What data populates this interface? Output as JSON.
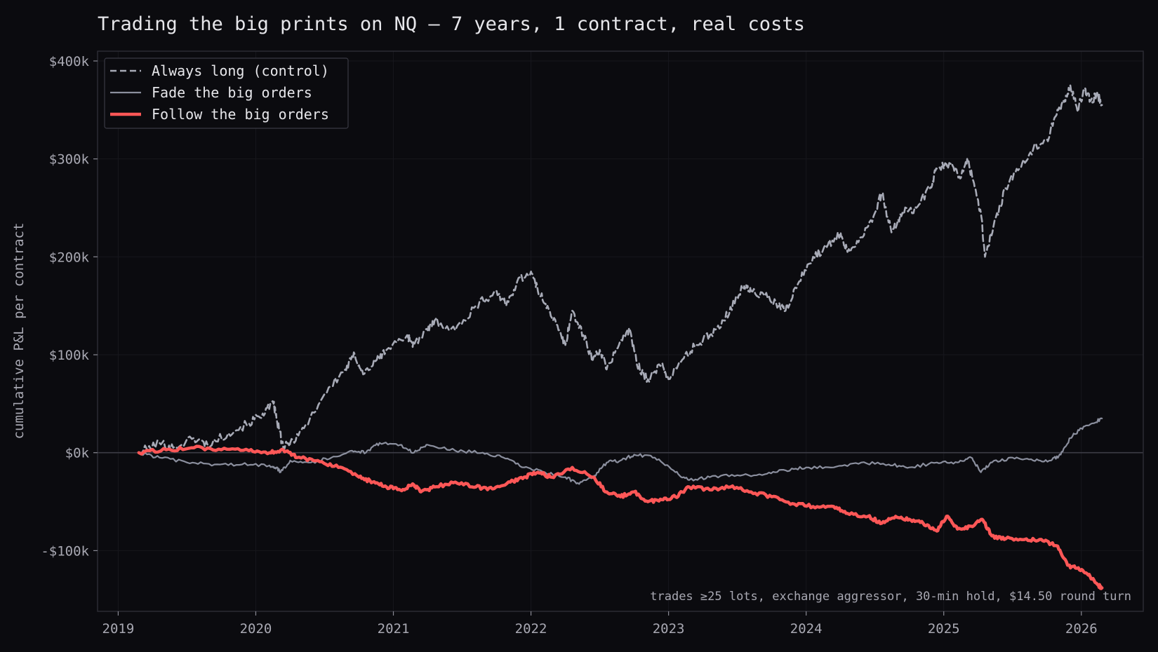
{
  "chart_data": {
    "type": "line",
    "title": "Trading the big prints on NQ — 7 years, 1 contract, real costs",
    "xlabel": "",
    "ylabel": "cumulative P&L per contract",
    "xlim": [
      2018.85,
      2026.45
    ],
    "ylim": [
      -162,
      410
    ],
    "x_ticks": [
      2019,
      2020,
      2021,
      2022,
      2023,
      2024,
      2025,
      2026
    ],
    "x_tick_labels": [
      "2019",
      "2020",
      "2021",
      "2022",
      "2023",
      "2024",
      "2025",
      "2026"
    ],
    "y_ticks": [
      -100,
      0,
      100,
      200,
      300,
      400
    ],
    "y_tick_labels": [
      "-$100k",
      "$0k",
      "$100k",
      "$200k",
      "$300k",
      "$400k"
    ],
    "y_unit": "thousand USD",
    "grid": true,
    "zero_line": true,
    "legend_position": "top-left",
    "annotation": "trades ≥25 lots, exchange aggressor, 30-min hold, $14.50 round turn",
    "colors": {
      "background": "#0b0b0f",
      "plot_frame": "#2e2e36",
      "grid": "#17171d",
      "zero_line": "#3c3c46",
      "control": "#a7aab6",
      "fade": "#8b8f9e",
      "follow": "#ff5757"
    },
    "series": [
      {
        "name": "Always long (control)",
        "style": "dashed",
        "color": "#a7aab6",
        "points": [
          [
            2019.15,
            0
          ],
          [
            2019.3,
            10
          ],
          [
            2019.4,
            5
          ],
          [
            2019.55,
            15
          ],
          [
            2019.65,
            8
          ],
          [
            2019.8,
            20
          ],
          [
            2019.95,
            30
          ],
          [
            2020.05,
            40
          ],
          [
            2020.13,
            50
          ],
          [
            2020.15,
            35
          ],
          [
            2020.2,
            5
          ],
          [
            2020.25,
            10
          ],
          [
            2020.35,
            25
          ],
          [
            2020.5,
            60
          ],
          [
            2020.65,
            85
          ],
          [
            2020.72,
            100
          ],
          [
            2020.78,
            80
          ],
          [
            2020.88,
            95
          ],
          [
            2020.95,
            105
          ],
          [
            2021.1,
            120
          ],
          [
            2021.15,
            110
          ],
          [
            2021.25,
            125
          ],
          [
            2021.3,
            135
          ],
          [
            2021.45,
            125
          ],
          [
            2021.6,
            150
          ],
          [
            2021.75,
            165
          ],
          [
            2021.82,
            150
          ],
          [
            2021.9,
            175
          ],
          [
            2022.0,
            185
          ],
          [
            2022.05,
            165
          ],
          [
            2022.12,
            150
          ],
          [
            2022.2,
            125
          ],
          [
            2022.25,
            110
          ],
          [
            2022.3,
            145
          ],
          [
            2022.38,
            120
          ],
          [
            2022.45,
            95
          ],
          [
            2022.5,
            105
          ],
          [
            2022.55,
            85
          ],
          [
            2022.65,
            115
          ],
          [
            2022.72,
            125
          ],
          [
            2022.77,
            90
          ],
          [
            2022.85,
            75
          ],
          [
            2022.95,
            90
          ],
          [
            2023.0,
            75
          ],
          [
            2023.1,
            95
          ],
          [
            2023.2,
            110
          ],
          [
            2023.3,
            120
          ],
          [
            2023.4,
            135
          ],
          [
            2023.5,
            160
          ],
          [
            2023.55,
            170
          ],
          [
            2023.6,
            165
          ],
          [
            2023.7,
            160
          ],
          [
            2023.8,
            150
          ],
          [
            2023.85,
            145
          ],
          [
            2023.95,
            175
          ],
          [
            2024.05,
            200
          ],
          [
            2024.15,
            210
          ],
          [
            2024.25,
            225
          ],
          [
            2024.3,
            205
          ],
          [
            2024.4,
            220
          ],
          [
            2024.5,
            245
          ],
          [
            2024.55,
            265
          ],
          [
            2024.62,
            225
          ],
          [
            2024.7,
            245
          ],
          [
            2024.8,
            250
          ],
          [
            2024.9,
            270
          ],
          [
            2024.95,
            290
          ],
          [
            2025.05,
            295
          ],
          [
            2025.12,
            280
          ],
          [
            2025.17,
            300
          ],
          [
            2025.22,
            275
          ],
          [
            2025.27,
            245
          ],
          [
            2025.3,
            200
          ],
          [
            2025.36,
            230
          ],
          [
            2025.45,
            270
          ],
          [
            2025.55,
            290
          ],
          [
            2025.65,
            310
          ],
          [
            2025.75,
            320
          ],
          [
            2025.82,
            345
          ],
          [
            2025.88,
            360
          ],
          [
            2025.92,
            375
          ],
          [
            2025.97,
            350
          ],
          [
            2026.02,
            370
          ],
          [
            2026.07,
            360
          ],
          [
            2026.12,
            365
          ],
          [
            2026.15,
            355
          ]
        ]
      },
      {
        "name": "Fade the big orders",
        "style": "solid",
        "color": "#8b8f9e",
        "points": [
          [
            2019.15,
            0
          ],
          [
            2019.3,
            -5
          ],
          [
            2019.5,
            -10
          ],
          [
            2019.7,
            -12
          ],
          [
            2019.9,
            -12
          ],
          [
            2020.1,
            -13
          ],
          [
            2020.15,
            -15
          ],
          [
            2020.18,
            -20
          ],
          [
            2020.25,
            -8
          ],
          [
            2020.4,
            -10
          ],
          [
            2020.55,
            -5
          ],
          [
            2020.7,
            2
          ],
          [
            2020.8,
            0
          ],
          [
            2020.9,
            10
          ],
          [
            2021.05,
            8
          ],
          [
            2021.15,
            0
          ],
          [
            2021.25,
            8
          ],
          [
            2021.45,
            2
          ],
          [
            2021.65,
            0
          ],
          [
            2021.8,
            -5
          ],
          [
            2021.95,
            -15
          ],
          [
            2022.1,
            -20
          ],
          [
            2022.25,
            -25
          ],
          [
            2022.35,
            -32
          ],
          [
            2022.45,
            -25
          ],
          [
            2022.55,
            -10
          ],
          [
            2022.65,
            -8
          ],
          [
            2022.75,
            -2
          ],
          [
            2022.9,
            -5
          ],
          [
            2023.05,
            -20
          ],
          [
            2023.15,
            -28
          ],
          [
            2023.3,
            -25
          ],
          [
            2023.5,
            -23
          ],
          [
            2023.7,
            -22
          ],
          [
            2023.85,
            -18
          ],
          [
            2024.0,
            -15
          ],
          [
            2024.2,
            -15
          ],
          [
            2024.4,
            -10
          ],
          [
            2024.6,
            -12
          ],
          [
            2024.75,
            -15
          ],
          [
            2024.95,
            -10
          ],
          [
            2025.1,
            -10
          ],
          [
            2025.2,
            -5
          ],
          [
            2025.27,
            -20
          ],
          [
            2025.35,
            -10
          ],
          [
            2025.5,
            -5
          ],
          [
            2025.65,
            -8
          ],
          [
            2025.78,
            -8
          ],
          [
            2025.85,
            -2
          ],
          [
            2025.92,
            15
          ],
          [
            2026.0,
            25
          ],
          [
            2026.08,
            30
          ],
          [
            2026.15,
            35
          ]
        ]
      },
      {
        "name": "Follow the big orders",
        "style": "solid",
        "color": "#ff5757",
        "points": [
          [
            2019.15,
            0
          ],
          [
            2019.35,
            3
          ],
          [
            2019.55,
            5
          ],
          [
            2019.75,
            3
          ],
          [
            2019.95,
            2
          ],
          [
            2020.1,
            0
          ],
          [
            2020.2,
            3
          ],
          [
            2020.3,
            -5
          ],
          [
            2020.45,
            -8
          ],
          [
            2020.6,
            -15
          ],
          [
            2020.75,
            -25
          ],
          [
            2020.85,
            -30
          ],
          [
            2020.95,
            -35
          ],
          [
            2021.05,
            -38
          ],
          [
            2021.15,
            -33
          ],
          [
            2021.2,
            -40
          ],
          [
            2021.3,
            -35
          ],
          [
            2021.45,
            -30
          ],
          [
            2021.6,
            -35
          ],
          [
            2021.72,
            -37
          ],
          [
            2021.85,
            -30
          ],
          [
            2021.95,
            -25
          ],
          [
            2022.05,
            -20
          ],
          [
            2022.15,
            -25
          ],
          [
            2022.3,
            -15
          ],
          [
            2022.45,
            -25
          ],
          [
            2022.55,
            -40
          ],
          [
            2022.65,
            -45
          ],
          [
            2022.75,
            -40
          ],
          [
            2022.85,
            -50
          ],
          [
            2022.95,
            -48
          ],
          [
            2023.05,
            -45
          ],
          [
            2023.15,
            -35
          ],
          [
            2023.3,
            -38
          ],
          [
            2023.45,
            -35
          ],
          [
            2023.6,
            -40
          ],
          [
            2023.75,
            -45
          ],
          [
            2023.9,
            -52
          ],
          [
            2024.05,
            -55
          ],
          [
            2024.2,
            -55
          ],
          [
            2024.3,
            -62
          ],
          [
            2024.45,
            -65
          ],
          [
            2024.55,
            -72
          ],
          [
            2024.65,
            -65
          ],
          [
            2024.75,
            -68
          ],
          [
            2024.85,
            -72
          ],
          [
            2024.95,
            -80
          ],
          [
            2025.02,
            -65
          ],
          [
            2025.1,
            -78
          ],
          [
            2025.2,
            -75
          ],
          [
            2025.28,
            -68
          ],
          [
            2025.35,
            -85
          ],
          [
            2025.45,
            -88
          ],
          [
            2025.6,
            -88
          ],
          [
            2025.72,
            -90
          ],
          [
            2025.82,
            -95
          ],
          [
            2025.9,
            -115
          ],
          [
            2025.97,
            -118
          ],
          [
            2026.05,
            -125
          ],
          [
            2026.12,
            -135
          ],
          [
            2026.15,
            -138
          ]
        ]
      }
    ]
  }
}
